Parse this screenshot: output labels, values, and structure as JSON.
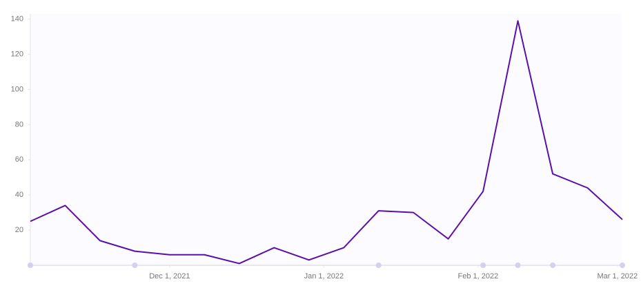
{
  "chart_data": {
    "type": "line",
    "x": [
      "2021-11-03",
      "2021-11-10",
      "2021-11-17",
      "2021-11-24",
      "2021-12-01",
      "2021-12-08",
      "2021-12-15",
      "2021-12-22",
      "2021-12-29",
      "2022-01-05",
      "2022-01-12",
      "2022-01-19",
      "2022-01-26",
      "2022-02-02",
      "2022-02-09",
      "2022-02-16",
      "2022-02-23",
      "2022-03-02"
    ],
    "series": [
      {
        "color": "#5a0fa8",
        "values": [
          25,
          34,
          14,
          8,
          6,
          6,
          1,
          10,
          3,
          10,
          31,
          30,
          15,
          42,
          139,
          52,
          44,
          26
        ]
      }
    ],
    "markers": [
      "2021-11-03",
      "2021-11-24",
      "2022-01-12",
      "2022-02-02",
      "2022-02-09",
      "2022-02-16",
      "2022-03-02"
    ],
    "marker_color": "#d4d0ee",
    "xlim": [
      "2021-11-03",
      "2022-03-02"
    ],
    "xticks": [
      {
        "value": "2021-12-01",
        "label": "Dec 1, 2021"
      },
      {
        "value": "2022-01-01",
        "label": "Jan 1, 2022"
      },
      {
        "value": "2022-02-01",
        "label": "Feb 1, 2022"
      },
      {
        "value": "2022-03-01",
        "label": "Mar 1, 2022"
      }
    ],
    "ylim": [
      0,
      143
    ],
    "yticks": [
      20,
      40,
      60,
      80,
      100,
      120,
      140
    ]
  }
}
